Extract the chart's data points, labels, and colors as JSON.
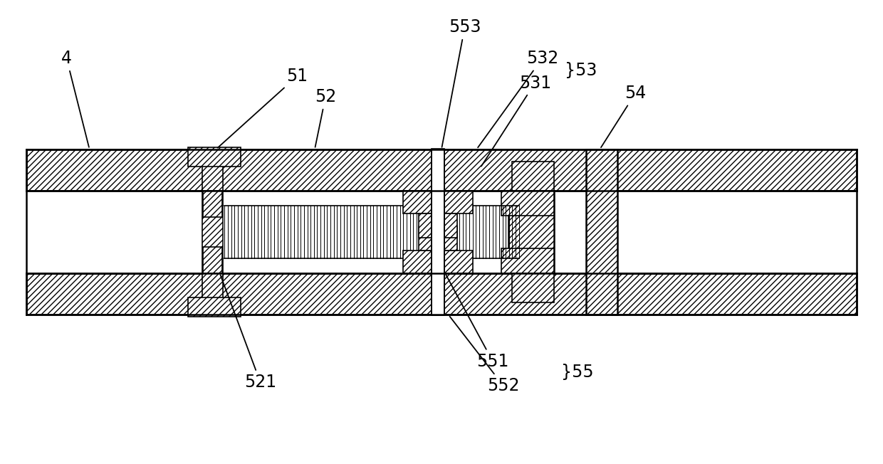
{
  "bg_color": "#ffffff",
  "line_color": "#000000",
  "fig_width": 12.4,
  "fig_height": 6.52,
  "font_size": 17
}
